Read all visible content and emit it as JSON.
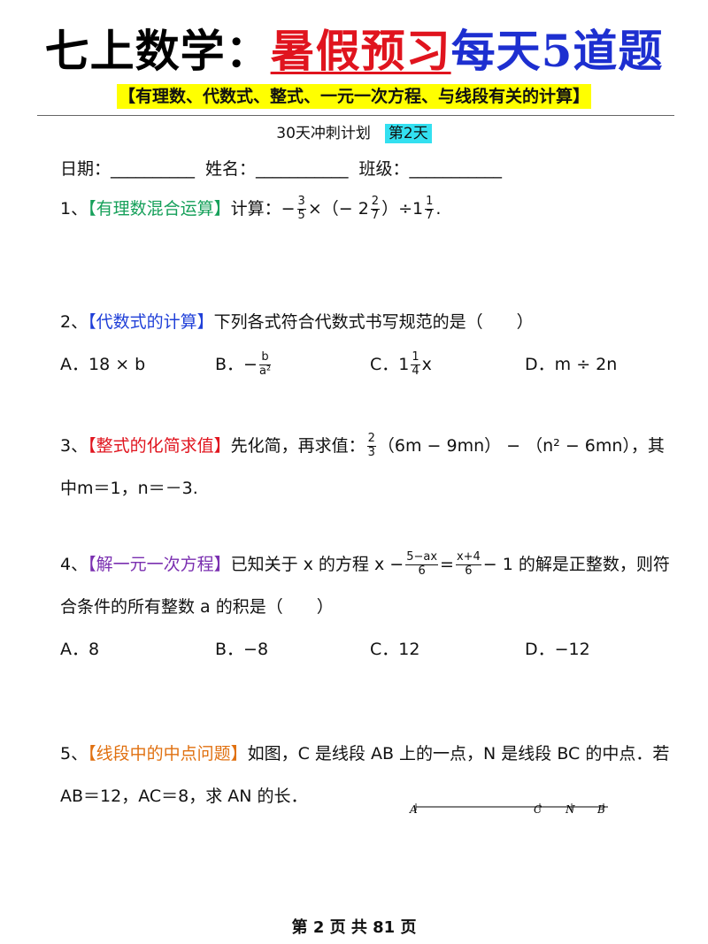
{
  "header": {
    "title": [
      "七上数学：",
      "暑假预习",
      "每天5道题"
    ],
    "subtitle": "【有理数、代数式、整式、一元一次方程、与线段有关的计算】",
    "plan": "30天冲刺计划",
    "day": "第2天"
  },
  "info": [
    "日期：__________",
    "姓名：___________",
    "班级：___________"
  ],
  "questions": [
    {
      "number": "1、",
      "tag": "【有理数混合运算】",
      "tag_color": "#16a05a",
      "content": [
        "计算：−",
        {
          "num": "3",
          "den": "5"
        },
        "×（− 2",
        {
          "num": "2",
          "den": "7"
        },
        "）÷1",
        {
          "num": "1",
          "den": "7"
        },
        "."
      ]
    },
    {
      "number": "2、",
      "tag": "【代数式的计算】",
      "tag_color": "#1f3fd8",
      "content": [
        "下列各式符合代数式书写规范的是（　　）"
      ],
      "options": [
        {
          "label": "A．",
          "content": [
            "18 × b"
          ]
        },
        {
          "label": "B．",
          "content": [
            "−",
            {
              "num": "b",
              "den": "a²"
            }
          ]
        },
        {
          "label": "C．",
          "content": [
            "1",
            {
              "num": "1",
              "den": "4"
            },
            "x"
          ]
        },
        {
          "label": "D．",
          "content": [
            "m ÷ 2n"
          ]
        }
      ]
    },
    {
      "number": "3、",
      "tag": "【整式的化简求值】",
      "tag_color": "#e0141e",
      "content": [
        "先化简，再求值：",
        {
          "num": "2",
          "den": "3"
        },
        "（6m − 9mn） − （n² − 6mn），其中m＝1，n＝－3."
      ]
    },
    {
      "number": "4、",
      "tag": "【解一元一次方程】",
      "tag_color": "#7a2fb0",
      "content": [
        "已知关于 x 的方程 x −",
        {
          "num": "5−ax",
          "den": "6"
        },
        "=",
        {
          "num": "x+4",
          "den": "6"
        },
        "− 1 的解是正整数，则符合条件的所有整数 a 的积是（　　）"
      ],
      "options": [
        {
          "label": "A．",
          "content": [
            "8"
          ]
        },
        {
          "label": "B．",
          "content": [
            "−8"
          ]
        },
        {
          "label": "C．",
          "content": [
            "12"
          ]
        },
        {
          "label": "D．",
          "content": [
            "−12"
          ]
        }
      ]
    },
    {
      "number": "5、",
      "tag": "【线段中的中点问题】",
      "tag_color": "#e07010",
      "content": [
        "如图，C 是线段 AB 上的一点，N 是线段 BC 的中点．若 AB＝12，AC＝8，求 AN 的长．"
      ],
      "figure": {
        "points": [
          "A",
          "C",
          "N",
          "B"
        ]
      }
    }
  ],
  "footer": "第 2 页 共 81 页"
}
